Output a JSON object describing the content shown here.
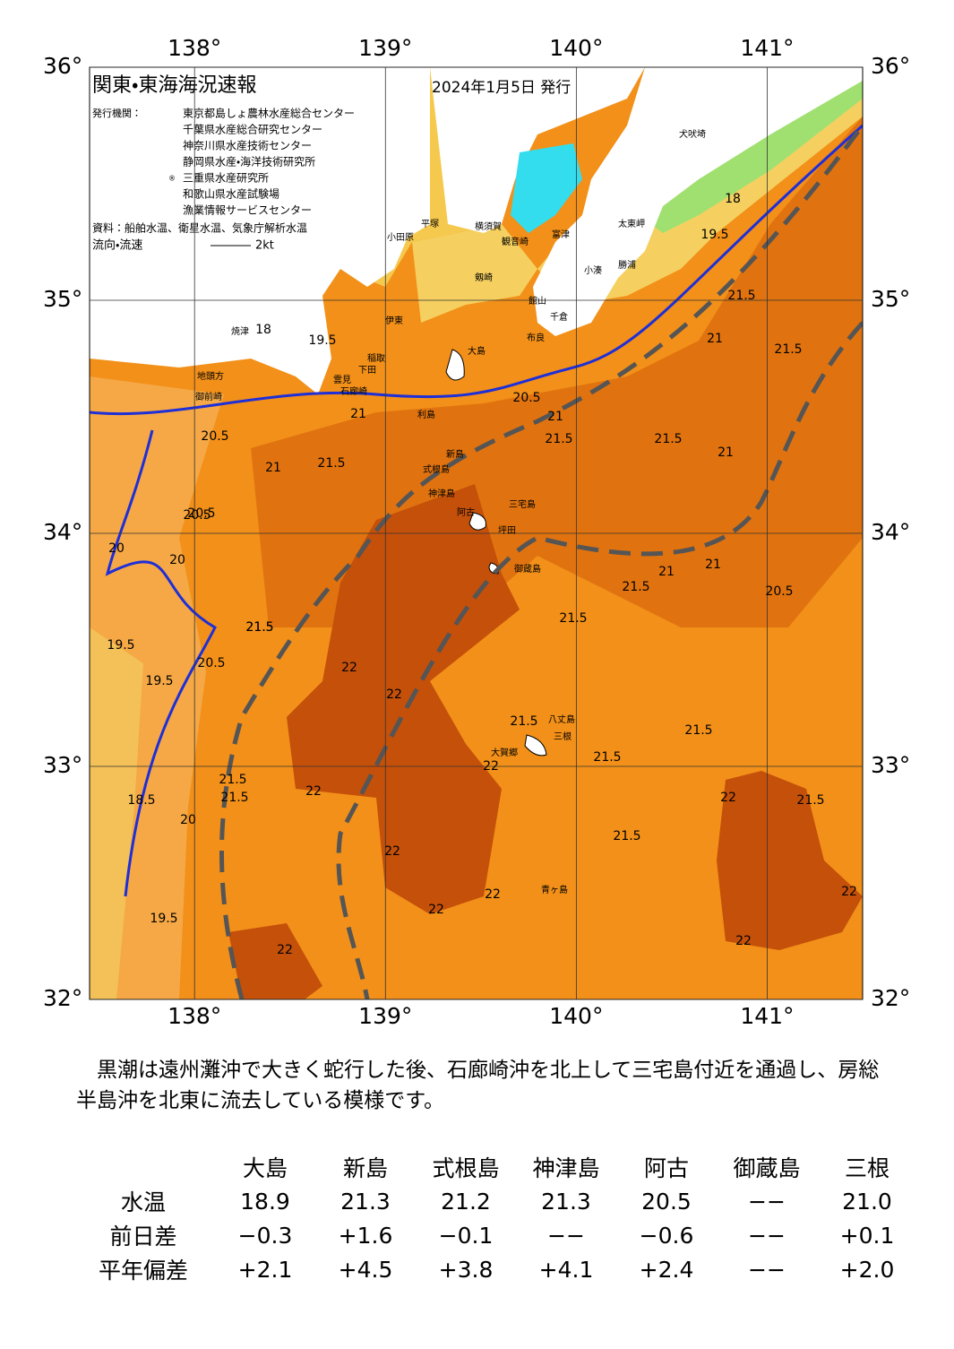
{
  "map": {
    "title": "関東・東海海況速報",
    "date": "2024年1月5日 発行",
    "issuer_label": "発行機関：",
    "issuers": [
      "東京都島しょ農林水産総合センター",
      "千葉県水産総合研究センター",
      "神奈川県水産技術センター",
      "静岡県水産・海洋技術研究所",
      "三重県水産研究所",
      "和歌山県水産試験場",
      "漁業情報サービスセンター"
    ],
    "issuer_mark": "®",
    "source": "資料：船舶水温、衛星水温、気象庁解析水温",
    "current_label": "流向・流速",
    "current_scale": "2kt",
    "lonlim": [
      137.45,
      141.5
    ],
    "latlim": [
      32,
      36
    ],
    "lon_ticks": [
      {
        "value": 138,
        "label": "138°"
      },
      {
        "value": 139,
        "label": "139°"
      },
      {
        "value": 140,
        "label": "140°"
      },
      {
        "value": 141,
        "label": "141°"
      }
    ],
    "lat_ticks": [
      {
        "value": 36,
        "label": "36°"
      },
      {
        "value": 35,
        "label": "35°"
      },
      {
        "value": 34,
        "label": "34°"
      },
      {
        "value": 33,
        "label": "33°"
      },
      {
        "value": 32,
        "label": "32°"
      }
    ],
    "places": [
      "大島",
      "利島",
      "新島",
      "式根島",
      "神津島",
      "三宅島",
      "阿古",
      "坪田",
      "御蔵島",
      "八丈島",
      "三根",
      "大賀郷",
      "青ヶ島",
      "犬吠埼",
      "太東岬",
      "勝浦",
      "小湊",
      "館山",
      "千倉",
      "布良",
      "富津",
      "観音崎",
      "剱崎",
      "横須賀",
      "平塚",
      "小田原",
      "伊東",
      "稲取",
      "下田",
      "石廊崎",
      "雲見",
      "焼津",
      "地頭方",
      "御前崎"
    ],
    "contour_labels": [
      "18",
      "19.5",
      "21",
      "20.5",
      "21.5",
      "21",
      "21.5",
      "18",
      "19.5",
      "20.5",
      "21",
      "20.5",
      "21",
      "21.5",
      "21.5",
      "21.5",
      "21",
      "21.5",
      "20",
      "20.5",
      "20",
      "21.5",
      "19.5",
      "19.5",
      "22",
      "22",
      "22",
      "21.5",
      "21",
      "21",
      "21.5",
      "20.5",
      "20.5",
      "21.5",
      "21.5",
      "22",
      "22",
      "21.5",
      "22",
      "22",
      "22",
      "22",
      "18.5",
      "19.5",
      "22",
      "22",
      "21.5",
      "21.5",
      "21.5",
      "20",
      "21.5"
    ],
    "description": "　黒潮は遠州灘沖で大きく蛇行した後、石廊崎沖を北上して三宅島付近を通過し、房総半島沖を北東に流去している模様です。",
    "table": {
      "header": [
        "大島",
        "新島",
        "式根島",
        "神津島",
        "阿古",
        "御蔵島",
        "三根"
      ],
      "rows": [
        [
          "水温",
          "18.9",
          "21.3",
          "21.2",
          "21.3",
          "20.5",
          "−−",
          "21.0"
        ],
        [
          "前日差",
          "−0.3",
          "+1.6",
          "−0.1",
          "−−",
          "−0.6",
          "−−",
          "+0.1"
        ],
        [
          "平年偏差",
          "+2.1",
          "+4.5",
          "+3.8",
          "+4.1",
          "+2.4",
          "−−",
          "+2.0"
        ]
      ]
    }
  }
}
